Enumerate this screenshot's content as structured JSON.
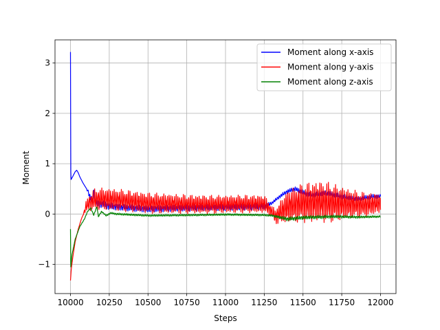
{
  "chart_data": {
    "type": "line",
    "title": "",
    "xlabel": "Steps",
    "ylabel": "Moment",
    "xlim": [
      9900,
      12100
    ],
    "ylim": [
      -1.58,
      3.46
    ],
    "xticks": [
      10000,
      10250,
      10500,
      10750,
      11000,
      11250,
      11500,
      11750,
      12000
    ],
    "yticks": [
      -1,
      0,
      1,
      2,
      3
    ],
    "ytick_labels": [
      "−1",
      "0",
      "1",
      "2",
      "3"
    ],
    "grid": true,
    "legend_position": "top-right",
    "series": [
      {
        "name": "Moment along x-axis",
        "color": "#0000ff",
        "points": [
          [
            10000,
            3.22
          ],
          [
            10001,
            1.0
          ],
          [
            10003,
            0.68
          ],
          [
            10010,
            0.72
          ],
          [
            10020,
            0.78
          ],
          [
            10030,
            0.84
          ],
          [
            10040,
            0.87
          ],
          [
            10050,
            0.82
          ],
          [
            10060,
            0.74
          ],
          [
            10080,
            0.62
          ],
          [
            10100,
            0.52
          ],
          [
            10115,
            0.44
          ],
          [
            10125,
            0.33
          ],
          [
            10140,
            0.27
          ],
          [
            10150,
            0.45
          ],
          [
            10160,
            0.22
          ],
          [
            10200,
            0.2
          ],
          [
            10250,
            0.16
          ],
          [
            10300,
            0.14
          ],
          [
            10400,
            0.12
          ],
          [
            10500,
            0.1
          ],
          [
            10700,
            0.12
          ],
          [
            10900,
            0.13
          ],
          [
            11100,
            0.14
          ],
          [
            11250,
            0.15
          ],
          [
            11300,
            0.22
          ],
          [
            11350,
            0.35
          ],
          [
            11400,
            0.45
          ],
          [
            11450,
            0.5
          ],
          [
            11500,
            0.43
          ],
          [
            11550,
            0.38
          ],
          [
            11650,
            0.42
          ],
          [
            11750,
            0.35
          ],
          [
            11850,
            0.3
          ],
          [
            11950,
            0.35
          ],
          [
            12000,
            0.35
          ]
        ],
        "osc": [
          [
            10000,
            0
          ],
          [
            10100,
            0
          ],
          [
            10130,
            0.06
          ],
          [
            10300,
            0.05
          ],
          [
            11000,
            0.05
          ],
          [
            11250,
            0.05
          ],
          [
            11300,
            0.02
          ],
          [
            11400,
            0.03
          ],
          [
            11600,
            0.04
          ],
          [
            12000,
            0.03
          ]
        ]
      },
      {
        "name": "Moment along y-axis",
        "color": "#ff0000",
        "points": [
          [
            10000,
            -1.32
          ],
          [
            10005,
            -1.1
          ],
          [
            10015,
            -0.85
          ],
          [
            10030,
            -0.55
          ],
          [
            10050,
            -0.3
          ],
          [
            10070,
            -0.1
          ],
          [
            10090,
            0.05
          ],
          [
            10100,
            0.15
          ],
          [
            10120,
            0.22
          ],
          [
            10150,
            0.28
          ],
          [
            10200,
            0.3
          ],
          [
            10300,
            0.28
          ],
          [
            10500,
            0.22
          ],
          [
            10700,
            0.2
          ],
          [
            10900,
            0.19
          ],
          [
            11100,
            0.2
          ],
          [
            11250,
            0.2
          ],
          [
            11300,
            0.05
          ],
          [
            11320,
            -0.05
          ],
          [
            11360,
            0.05
          ],
          [
            11400,
            0.15
          ],
          [
            11500,
            0.22
          ],
          [
            11600,
            0.25
          ],
          [
            11700,
            0.22
          ],
          [
            11800,
            0.2
          ],
          [
            11900,
            0.18
          ],
          [
            12000,
            0.22
          ]
        ],
        "osc": [
          [
            10000,
            0
          ],
          [
            10080,
            0
          ],
          [
            10100,
            0.08
          ],
          [
            10150,
            0.16
          ],
          [
            10300,
            0.16
          ],
          [
            10700,
            0.14
          ],
          [
            11000,
            0.13
          ],
          [
            11250,
            0.13
          ],
          [
            11300,
            0.08
          ],
          [
            11400,
            0.24
          ],
          [
            11550,
            0.3
          ],
          [
            11650,
            0.3
          ],
          [
            11800,
            0.22
          ],
          [
            12000,
            0.14
          ]
        ]
      },
      {
        "name": "Moment along z-axis",
        "color": "#008000",
        "points": [
          [
            10000,
            -0.3
          ],
          [
            10002,
            -1.05
          ],
          [
            10010,
            -0.8
          ],
          [
            10030,
            -0.5
          ],
          [
            10060,
            -0.25
          ],
          [
            10090,
            -0.1
          ],
          [
            10110,
            0.05
          ],
          [
            10130,
            0.12
          ],
          [
            10150,
            -0.02
          ],
          [
            10170,
            0.15
          ],
          [
            10180,
            -0.05
          ],
          [
            10200,
            0.05
          ],
          [
            10230,
            -0.03
          ],
          [
            10260,
            0.02
          ],
          [
            10300,
            0.0
          ],
          [
            10500,
            -0.03
          ],
          [
            10800,
            -0.02
          ],
          [
            11000,
            -0.01
          ],
          [
            11250,
            -0.02
          ],
          [
            11300,
            -0.03
          ],
          [
            11400,
            -0.1
          ],
          [
            11500,
            -0.07
          ],
          [
            11700,
            -0.05
          ],
          [
            11850,
            -0.06
          ],
          [
            12000,
            -0.05
          ]
        ],
        "osc": [
          [
            10000,
            0
          ],
          [
            10300,
            0.015
          ],
          [
            11300,
            0.015
          ],
          [
            11400,
            0.03
          ],
          [
            12000,
            0.015
          ]
        ]
      }
    ]
  }
}
